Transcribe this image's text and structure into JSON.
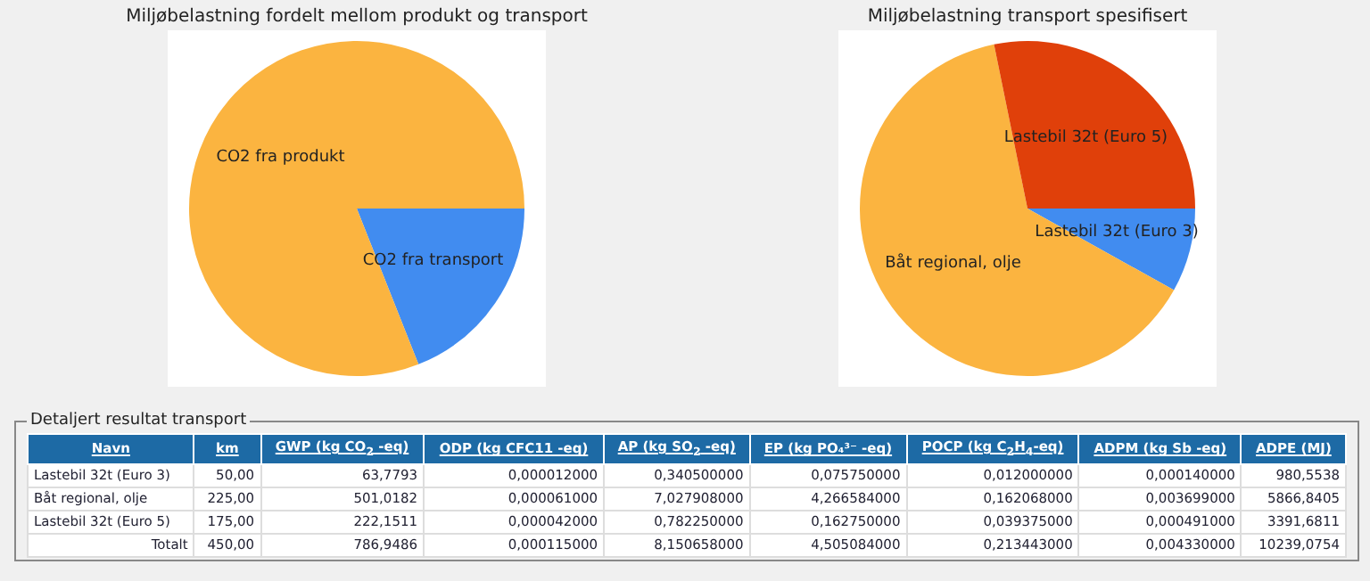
{
  "chart_data": [
    {
      "type": "pie",
      "title": "Miljøbelastning fordelt mellom produkt og transport",
      "categories": [
        "CO2 fra transport",
        "CO2 fra produkt"
      ],
      "values": [
        19,
        81
      ],
      "colors": [
        "#418cf0",
        "#fbb440"
      ]
    },
    {
      "type": "pie",
      "title": "Miljøbelastning transport spesifisert",
      "categories": [
        "Lastebil 32t (Euro 3)",
        "Båt regional, olje",
        "Lastebil 32t (Euro 5)"
      ],
      "values": [
        8.1,
        63.7,
        28.2
      ],
      "colors": [
        "#418cf0",
        "#fbb440",
        "#e0400a"
      ]
    },
    {
      "type": "other",
      "title": "Detaljert resultat transport",
      "categories": [
        "Navn",
        "km",
        "GWP (kg CO$_{2}$ -eq)",
        "ODP (kg CFC11 -eq)",
        "AP (kg SO$_{2}$ -eq)",
        "EP (kg PO₄³⁻ -eq)",
        "POCP (kg C$_{2}$H$_{4}$-eq)",
        "ADPM (kg Sb -eq)",
        "ADPE (MJ)"
      ],
      "y_categories": [
        "Lastebil 32t (Euro 3)",
        "Båt regional, olje",
        "Lastebil 32t (Euro 5)",
        "Totalt"
      ],
      "cell_labels": [
        [
          "50,00",
          "63,7793",
          "0,000012000",
          "0,340500000",
          "0,075750000",
          "0,012000000",
          "0,000140000",
          "980,5538"
        ],
        [
          "225,00",
          "501,0182",
          "0,000061000",
          "7,027908000",
          "4,266584000",
          "0,162068000",
          "0,003699000",
          "5866,8405"
        ],
        [
          "175,00",
          "222,1511",
          "0,000042000",
          "0,782250000",
          "0,162750000",
          "0,039375000",
          "0,000491000",
          "3391,6811"
        ],
        [
          "450,00",
          "786,9486",
          "0,000115000",
          "8,150658000",
          "4,505084000",
          "0,213443000",
          "0,004330000",
          "10239,0754"
        ]
      ]
    }
  ]
}
